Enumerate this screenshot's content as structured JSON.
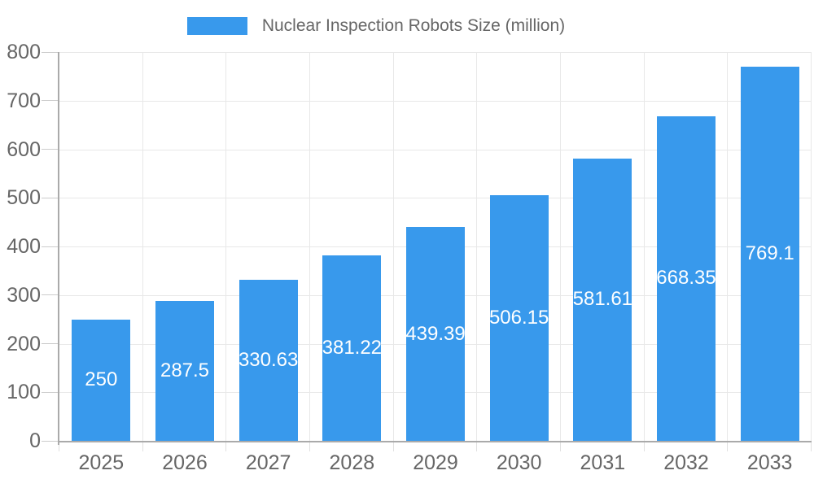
{
  "chart_data": {
    "type": "bar",
    "title": "Nuclear Inspection Robots Size (million)",
    "legend": {
      "position": "top",
      "items": [
        {
          "label": "Nuclear Inspection Robots Size (million)",
          "color": "#3899EC"
        }
      ]
    },
    "categories": [
      "2025",
      "2026",
      "2027",
      "2028",
      "2029",
      "2030",
      "2031",
      "2032",
      "2033"
    ],
    "series": [
      {
        "name": "Nuclear Inspection Robots Size (million)",
        "values": [
          250,
          287.5,
          330.63,
          381.22,
          439.39,
          506.15,
          581.61,
          668.35,
          769.1
        ],
        "value_labels": [
          "250",
          "287.5",
          "330.63",
          "381.22",
          "439.39",
          "506.15",
          "581.61",
          "668.35",
          "769.1"
        ]
      }
    ],
    "xlabel": "",
    "ylabel": "",
    "ylim": [
      0,
      800
    ],
    "yticks": [
      0,
      100,
      200,
      300,
      400,
      500,
      600,
      700,
      800
    ],
    "ytick_labels": [
      "0",
      "100",
      "200",
      "300",
      "400",
      "500",
      "600",
      "700",
      "800"
    ],
    "grid": true,
    "colors": {
      "bar": "#3899EC",
      "bar_value_label": "#FFFFFF",
      "axis_line": "#AAAAAA",
      "y_tick": "#CCCCCC",
      "x_tick": "#E0E0E0",
      "gridline": "#E8E8E8",
      "tick_label": "#666666",
      "background": "#FFFFFF"
    }
  }
}
